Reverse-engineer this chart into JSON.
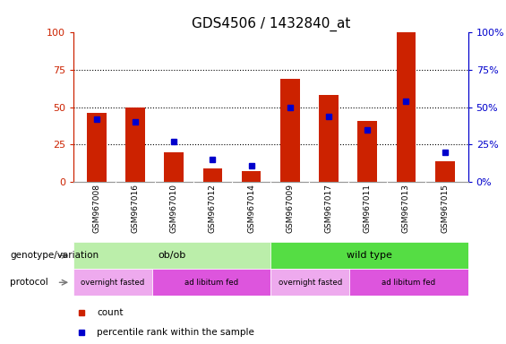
{
  "title": "GDS4506 / 1432840_at",
  "samples": [
    "GSM967008",
    "GSM967016",
    "GSM967010",
    "GSM967012",
    "GSM967014",
    "GSM967009",
    "GSM967017",
    "GSM967011",
    "GSM967013",
    "GSM967015"
  ],
  "count_values": [
    46,
    50,
    20,
    9,
    7,
    69,
    58,
    41,
    100,
    14
  ],
  "percentile_values": [
    42,
    40,
    27,
    15,
    11,
    50,
    44,
    35,
    54,
    20
  ],
  "bar_color": "#cc2200",
  "marker_color": "#0000cc",
  "ylim": [
    0,
    100
  ],
  "yticks": [
    0,
    25,
    50,
    75,
    100
  ],
  "title_fontsize": 11,
  "tick_fontsize": 8,
  "legend_items": [
    "count",
    "percentile rank within the sample"
  ],
  "genotype_groups": [
    {
      "label": "ob/ob",
      "start": 0,
      "end": 5,
      "color": "#bbeeaa"
    },
    {
      "label": "wild type",
      "start": 5,
      "end": 10,
      "color": "#55dd44"
    }
  ],
  "protocol_groups": [
    {
      "label": "overnight fasted",
      "start": 0,
      "end": 2,
      "color": "#eeaaee"
    },
    {
      "label": "ad libitum fed",
      "start": 2,
      "end": 5,
      "color": "#dd55dd"
    },
    {
      "label": "overnight fasted",
      "start": 5,
      "end": 7,
      "color": "#eeaaee"
    },
    {
      "label": "ad libitum fed",
      "start": 7,
      "end": 10,
      "color": "#dd55dd"
    }
  ],
  "label_row1": "genotype/variation",
  "label_row2": "protocol",
  "bg_color": "#ffffff",
  "sample_label_bg": "#cccccc",
  "sample_label_divider": "#ffffff"
}
